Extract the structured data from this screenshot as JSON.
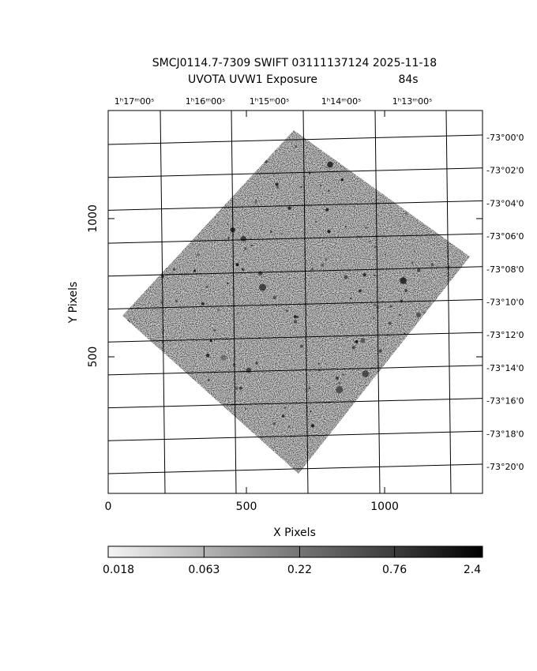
{
  "header": {
    "title": "SMCJ0114.7-7309 SWIFT 03111137124 2025-11-18",
    "subtitle": "UVOTA UVW1 Exposure",
    "exposure": "84s"
  },
  "plot": {
    "xlabel": "X Pixels",
    "ylabel": "Y Pixels",
    "xlim": [
      0,
      1354
    ],
    "ylim": [
      6,
      1391
    ],
    "xticks": [
      0,
      500,
      1000
    ],
    "yticks": [
      500,
      1000
    ],
    "ra_labels": [
      "1ʰ17ᵐ00ˢ",
      "1ʰ16ᵐ00ˢ",
      "1ʰ15ᵐ00ˢ",
      "1ʰ14ᵐ00ˢ",
      "1ʰ13ᵐ00ˢ"
    ],
    "dec_labels": [
      "-73°00'0",
      "-73°02'0",
      "-73°04'0",
      "-73°06'0",
      "-73°08'0",
      "-73°10'0",
      "-73°12'0",
      "-73°14'0",
      "-73°16'0",
      "-73°18'0",
      "-73°20'0"
    ]
  },
  "colorbar": {
    "scale": "log",
    "lim": [
      0.018,
      2.4
    ],
    "ticks": [
      0.018,
      0.063,
      0.22,
      0.76,
      2.4
    ]
  }
}
